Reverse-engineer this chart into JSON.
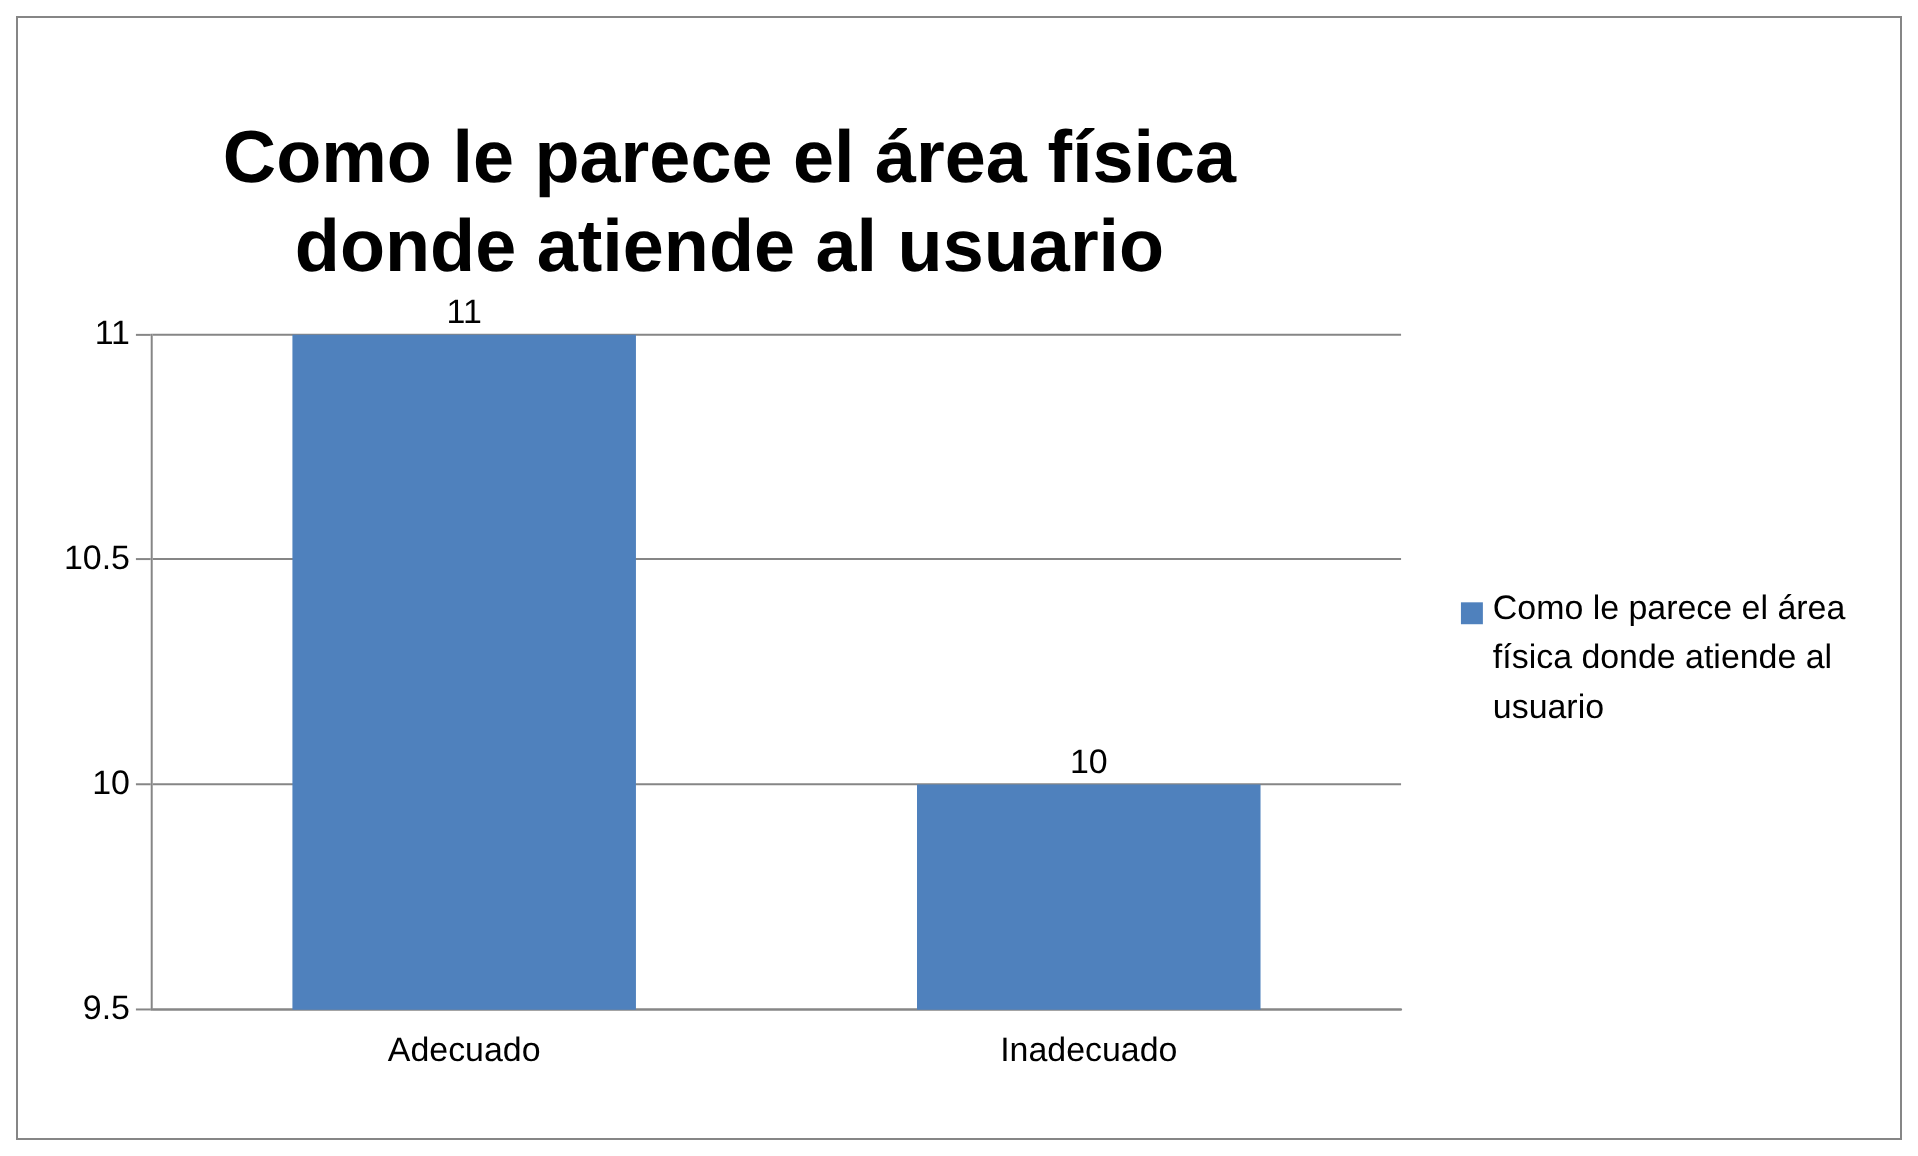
{
  "chart_data": {
    "type": "bar",
    "title": "Como le parece el área física donde atiende al usuario",
    "categories": [
      "Adecuado",
      "Inadecuado"
    ],
    "series": [
      {
        "name": "Como le parece el área física donde atiende al usuario",
        "color": "#4f81bd",
        "values": [
          11,
          10
        ]
      }
    ],
    "ylim": [
      9.5,
      11
    ],
    "yticks": [
      9.5,
      10,
      10.5,
      11
    ],
    "grid": "y",
    "legend": "right",
    "data_labels": true
  }
}
